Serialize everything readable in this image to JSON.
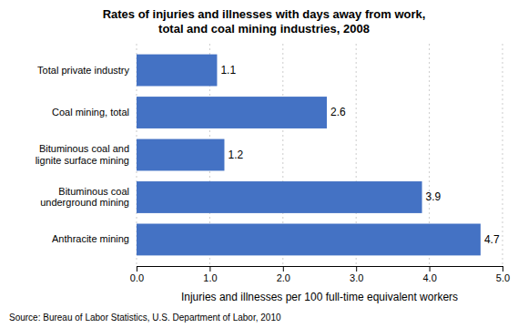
{
  "chart_data": {
    "type": "bar",
    "orientation": "horizontal",
    "title": "Rates of injuries and illnesses with days away from work,\ntotal and coal mining industries, 2008",
    "categories": [
      "Total private industry",
      "Coal mining, total",
      "Bituminous coal and\nlignite surface mining",
      "Bituminous coal\nunderground mining",
      "Anthracite mining"
    ],
    "values": [
      1.1,
      2.6,
      1.2,
      3.9,
      4.7
    ],
    "color": "#4472C4",
    "xlabel": "Injuries and illnesses per 100 full-time equivalent workers",
    "xlim": [
      0.0,
      5.0
    ],
    "xticks": [
      {
        "value": 0.0,
        "label": "0.0"
      },
      {
        "value": 1.0,
        "label": "1.0"
      },
      {
        "value": 2.0,
        "label": "2.0"
      },
      {
        "value": 3.0,
        "label": "3.0"
      },
      {
        "value": 4.0,
        "label": "4.0"
      },
      {
        "value": 5.0,
        "label": "5.0"
      }
    ],
    "data_labels": true,
    "grid": true,
    "annotations": [
      "Source: Bureau of Labor Statistics, U.S. Department of Labor, 2010"
    ]
  }
}
